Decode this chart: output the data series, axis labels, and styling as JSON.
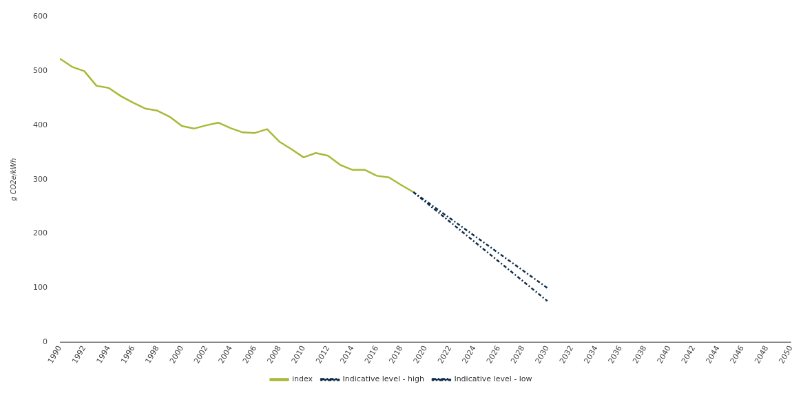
{
  "chart_data": {
    "type": "line",
    "ylabel": "g CO2e/kWh",
    "xlim": [
      1990,
      2050
    ],
    "xticks": [
      1990,
      1992,
      1994,
      1996,
      1998,
      2000,
      2002,
      2004,
      2006,
      2008,
      2010,
      2012,
      2014,
      2016,
      2018,
      2020,
      2022,
      2024,
      2026,
      2028,
      2030,
      2032,
      2034,
      2036,
      2038,
      2040,
      2042,
      2044,
      2046,
      2048,
      2050
    ],
    "ylim": [
      0,
      600
    ],
    "yticks": [
      0,
      100,
      200,
      300,
      400,
      500,
      600
    ],
    "grid": false,
    "legend": "bottom",
    "marker": "none",
    "series": [
      {
        "name": "index",
        "color": "#a9b936",
        "line_style": "solid",
        "x": [
          1990,
          1991,
          1992,
          1993,
          1994,
          1995,
          1996,
          1997,
          1998,
          1999,
          2000,
          2001,
          2002,
          2003,
          2004,
          2005,
          2006,
          2007,
          2008,
          2009,
          2010,
          2011,
          2012,
          2013,
          2014,
          2015,
          2016,
          2017,
          2018,
          2019
        ],
        "values": [
          523,
          508,
          500,
          473,
          469,
          454,
          442,
          431,
          427,
          416,
          399,
          394,
          400,
          405,
          395,
          387,
          386,
          393,
          370,
          356,
          341,
          349,
          344,
          327,
          318,
          318,
          307,
          304,
          290,
          277
        ]
      },
      {
        "name": "Indicative level - high",
        "color": "#0f2d4a",
        "line_style": "dashed",
        "x": [
          2019,
          2030
        ],
        "values": [
          277,
          100
        ]
      },
      {
        "name": "Indicative level - low",
        "color": "#0f2d4a",
        "line_style": "dashed",
        "x": [
          2019,
          2030
        ],
        "values": [
          277,
          76
        ]
      }
    ]
  }
}
